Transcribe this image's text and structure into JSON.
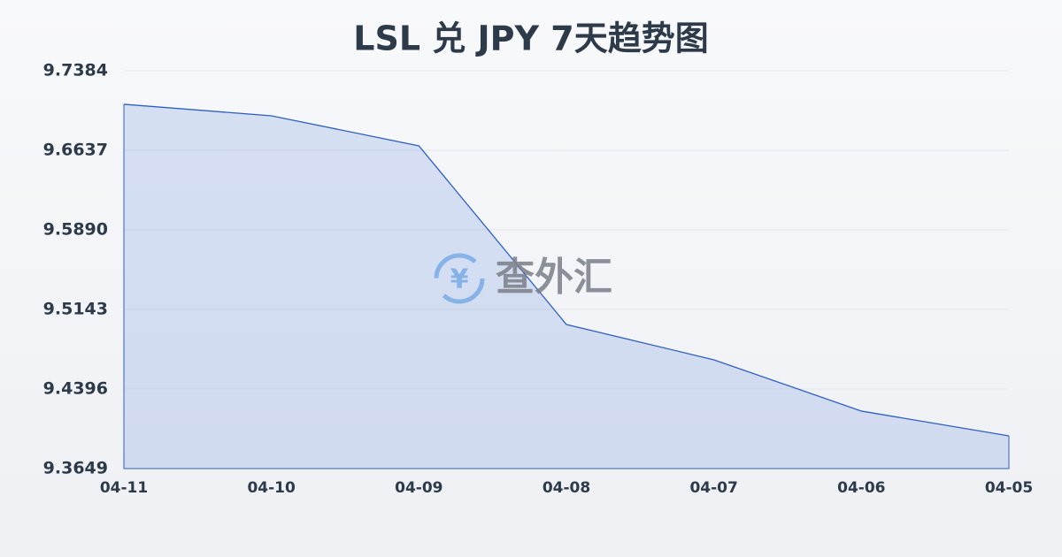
{
  "chart_data": {
    "type": "area",
    "title": "LSL 兑 JPY 7天趋势图",
    "watermark": "查外汇",
    "categories": [
      "04-11",
      "04-10",
      "04-09",
      "04-08",
      "04-07",
      "04-06",
      "04-05"
    ],
    "values": [
      9.7069,
      9.6961,
      9.6679,
      9.5002,
      9.467,
      9.4189,
      9.3956
    ],
    "color": "#2f5fc4",
    "ylim": [
      9.3649,
      9.7384
    ],
    "yticks": [
      9.3649,
      9.4396,
      9.5143,
      {
        "value": 9.589,
        "label": "9.5890"
      },
      9.6637,
      9.7384
    ],
    "grid": true
  }
}
